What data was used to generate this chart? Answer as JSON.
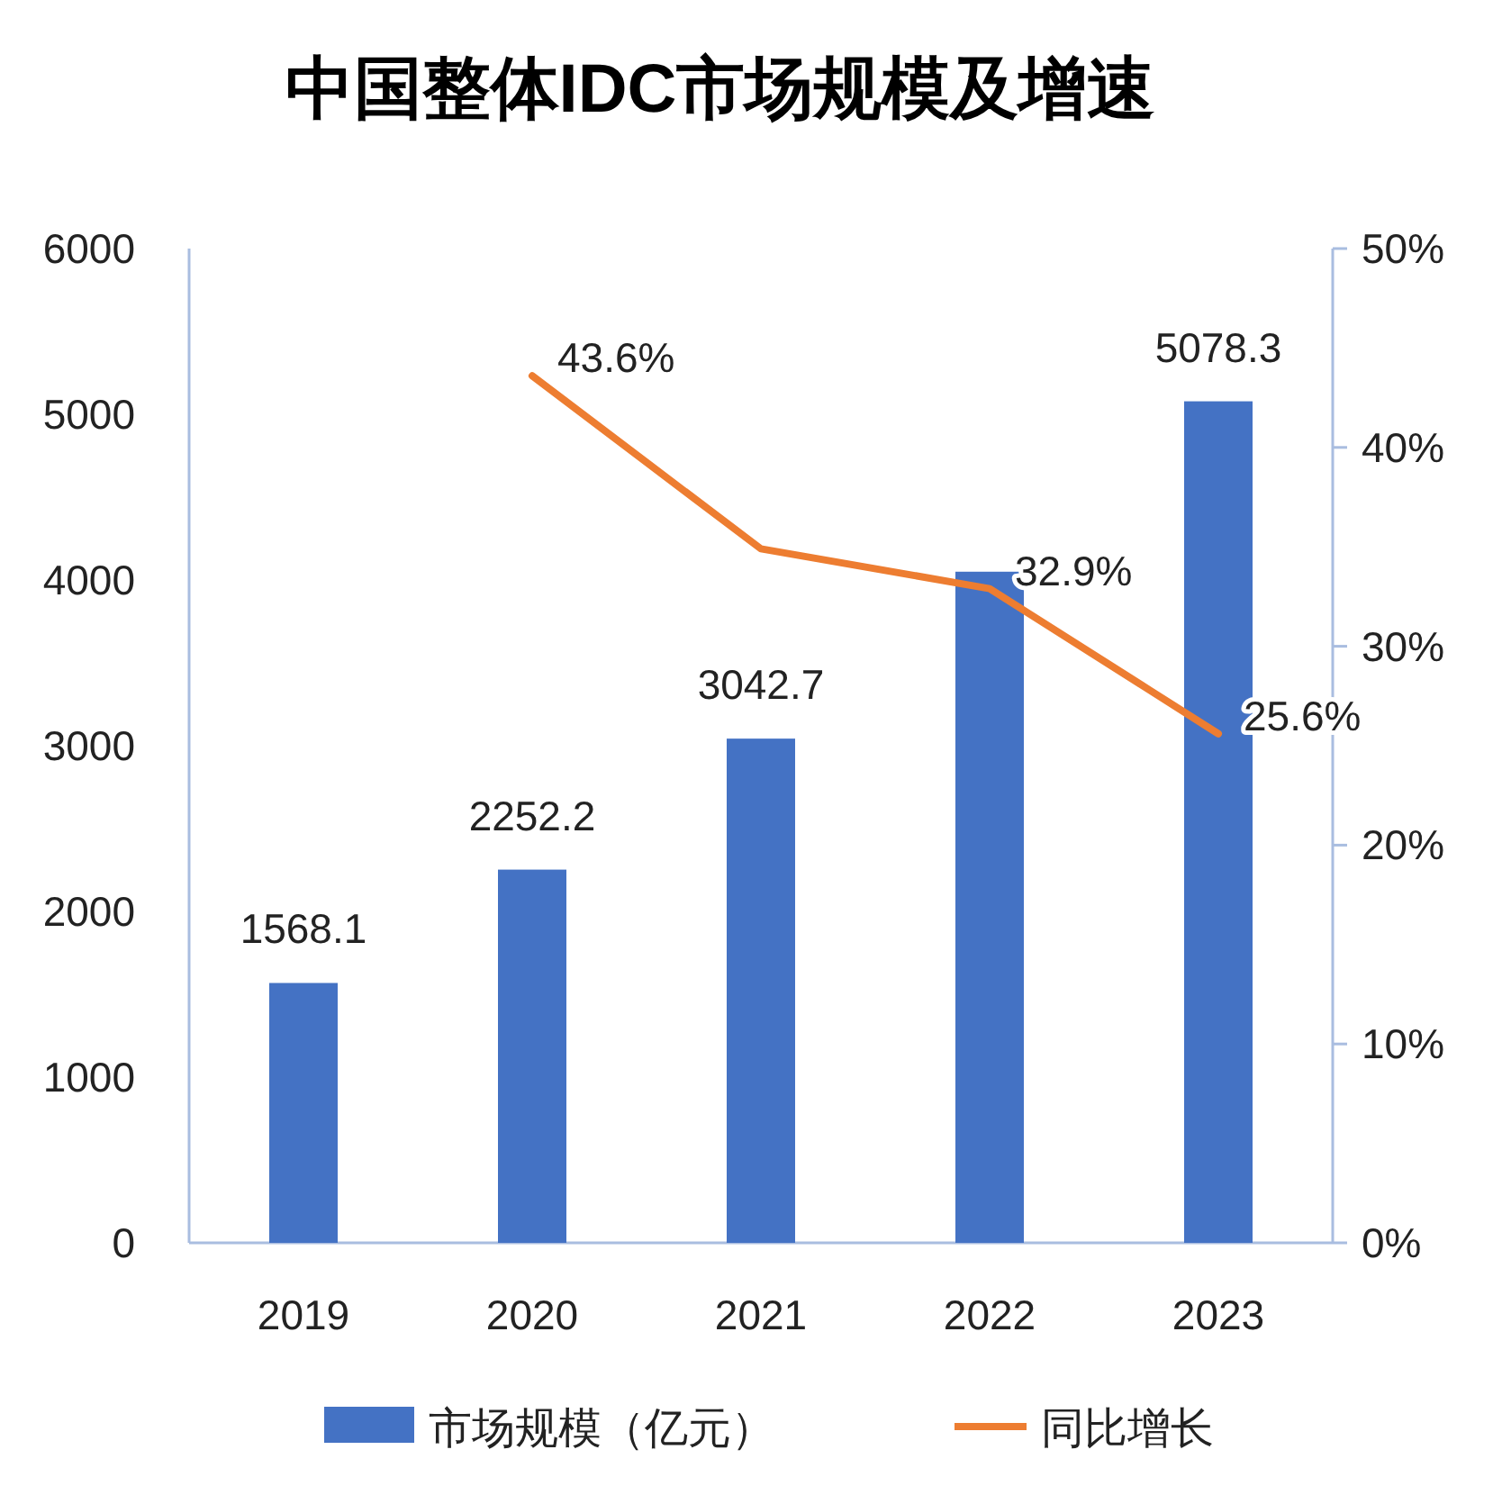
{
  "chart_data": {
    "type": "bar",
    "title": "中国整体IDC市场规模及增速",
    "categories": [
      "2019",
      "2020",
      "2021",
      "2022",
      "2023"
    ],
    "series": [
      {
        "name": "市场规模（亿元）",
        "color": "#4472c4",
        "values": [
          1568.1,
          2252.2,
          3042.7,
          4050,
          5078.3
        ],
        "value_labels": [
          "1568.1",
          "2252.2",
          "3042.7",
          null,
          "5078.3"
        ]
      },
      {
        "name": "同比增长",
        "type": "line",
        "axis": "y2",
        "color": "#ed7d31",
        "values": [
          null,
          43.6,
          34.9,
          32.9,
          25.6
        ],
        "value_labels": [
          null,
          "43.6%",
          null,
          "32.9%",
          "25.6%"
        ]
      }
    ],
    "ylim": [
      0,
      6000
    ],
    "yticks": [
      0,
      1000,
      2000,
      3000,
      4000,
      5000,
      6000
    ],
    "y2lim": [
      0,
      50
    ],
    "y2ticks": [
      {
        "value": 0,
        "label": "0%"
      },
      {
        "value": 10,
        "label": "10%"
      },
      {
        "value": 20,
        "label": "20%"
      },
      {
        "value": 30,
        "label": "30%"
      },
      {
        "value": 40,
        "label": "40%"
      },
      {
        "value": 50,
        "label": "50%"
      }
    ],
    "grid": false,
    "legend": "bottom"
  }
}
